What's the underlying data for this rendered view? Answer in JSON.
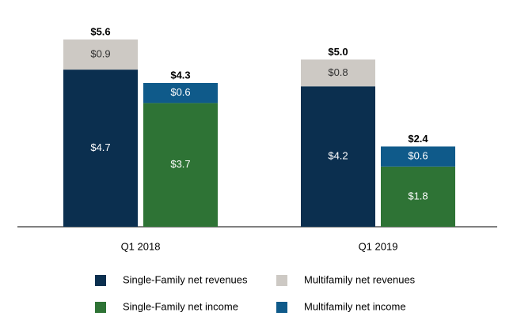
{
  "chart_data": {
    "type": "grouped-stacked-bar",
    "categories": [
      "Q1 2018",
      "Q1 2019"
    ],
    "stacks": [
      {
        "series": [
          {
            "name": "Single-Family net revenues",
            "color": "#0b2f4f",
            "values": [
              4.7,
              4.2
            ],
            "value_labels": [
              "$4.7",
              "$4.2"
            ]
          },
          {
            "name": "Multifamily net revenues",
            "color": "#cdc9c4",
            "values": [
              0.9,
              0.8
            ],
            "value_labels": [
              "$0.9",
              "$0.8"
            ]
          }
        ],
        "totals": [
          5.6,
          5.0
        ],
        "total_labels": [
          "$5.6",
          "$5.0"
        ]
      },
      {
        "series": [
          {
            "name": "Single-Family net income",
            "color": "#2e7335",
            "values": [
              3.7,
              1.8
            ],
            "value_labels": [
              "$3.7",
              "$1.8"
            ]
          },
          {
            "name": "Multifamily net income",
            "color": "#0f5a8a",
            "values": [
              0.6,
              0.6
            ],
            "value_labels": [
              "$0.6",
              "$0.6"
            ]
          }
        ],
        "totals": [
          4.3,
          2.4
        ],
        "total_labels": [
          "$4.3",
          "$2.4"
        ]
      }
    ]
  }
}
